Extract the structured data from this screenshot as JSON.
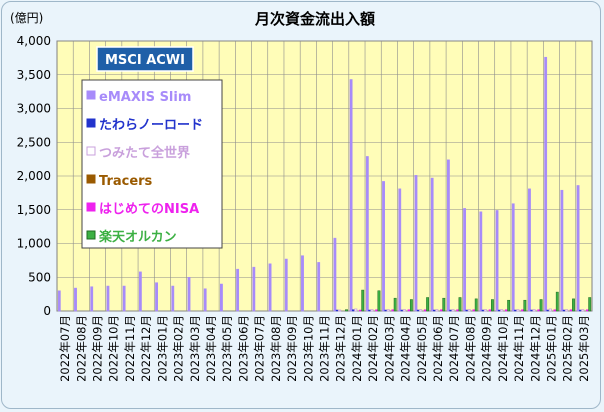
{
  "chart_data": {
    "type": "bar",
    "title": "月次資金流出入額",
    "y_unit_label": "(億円)",
    "ylim": [
      0,
      4000
    ],
    "y_ticks": [
      "0",
      "500",
      "1,000",
      "1,500",
      "2,000",
      "2,500",
      "3,000",
      "3,500",
      "4,000"
    ],
    "y_tick_values": [
      0,
      500,
      1000,
      1500,
      2000,
      2500,
      3000,
      3500,
      4000
    ],
    "grid": true,
    "legend_position": "left",
    "legend_title": "MSCI ACWI",
    "categories": [
      "2022年07月",
      "2022年08月",
      "2022年09月",
      "2022年10月",
      "2022年11月",
      "2022年12月",
      "2023年01月",
      "2023年02月",
      "2023年03月",
      "2023年04月",
      "2023年05月",
      "2023年06月",
      "2023年07月",
      "2023年08月",
      "2023年09月",
      "2023年10月",
      "2023年11月",
      "2023年12月",
      "2024年01月",
      "2024年02月",
      "2024年03月",
      "2024年04月",
      "2024年05月",
      "2024年06月",
      "2024年07月",
      "2024年08月",
      "2024年09月",
      "2024年10月",
      "2024年11月",
      "2024年12月",
      "2025年01月",
      "2025年02月",
      "2025年03月"
    ],
    "series": [
      {
        "name": "eMAXIS Slim",
        "color": "#a78bfa",
        "marker": "filled",
        "values": [
          300,
          340,
          360,
          370,
          370,
          580,
          420,
          370,
          500,
          330,
          400,
          620,
          650,
          700,
          770,
          820,
          720,
          1080,
          3430,
          2290,
          1920,
          1810,
          2010,
          1970,
          2240,
          1520,
          1470,
          1490,
          1590,
          1810,
          3760,
          1790,
          1860
        ]
      },
      {
        "name": "たわらノーロード",
        "color": "#2233cc",
        "marker": "filled",
        "values": [
          0,
          0,
          0,
          0,
          0,
          0,
          0,
          0,
          0,
          0,
          0,
          0,
          0,
          0,
          0,
          0,
          0,
          5,
          20,
          12,
          10,
          10,
          10,
          10,
          10,
          10,
          10,
          10,
          10,
          10,
          15,
          10,
          10
        ]
      },
      {
        "name": "つみたて全世界",
        "color": "#c9a0dc",
        "marker": "hollow",
        "values": [
          0,
          0,
          0,
          0,
          0,
          0,
          0,
          0,
          0,
          0,
          0,
          0,
          0,
          0,
          0,
          0,
          0,
          10,
          30,
          20,
          20,
          20,
          20,
          20,
          20,
          20,
          20,
          20,
          20,
          20,
          30,
          20,
          20
        ]
      },
      {
        "name": "Tracers",
        "color": "#9a5a00",
        "marker": "filled",
        "values": [
          0,
          0,
          0,
          0,
          0,
          0,
          0,
          0,
          0,
          0,
          0,
          0,
          0,
          0,
          0,
          0,
          0,
          0,
          0,
          0,
          0,
          0,
          0,
          0,
          0,
          0,
          0,
          0,
          0,
          0,
          0,
          0,
          0
        ]
      },
      {
        "name": "はじめてのNISA",
        "color": "#ee22ee",
        "marker": "filled",
        "values": [
          0,
          0,
          0,
          0,
          0,
          0,
          0,
          0,
          0,
          0,
          0,
          0,
          0,
          0,
          0,
          0,
          0,
          0,
          10,
          20,
          20,
          20,
          20,
          20,
          20,
          20,
          20,
          20,
          20,
          20,
          20,
          20,
          20
        ]
      },
      {
        "name": "楽天オルカン",
        "color": "#3cb043",
        "marker": "filled",
        "values": [
          0,
          0,
          0,
          0,
          0,
          0,
          0,
          0,
          0,
          0,
          0,
          0,
          0,
          0,
          0,
          0,
          0,
          20,
          310,
          300,
          190,
          170,
          200,
          190,
          200,
          180,
          170,
          160,
          160,
          170,
          280,
          180,
          200
        ]
      }
    ]
  }
}
